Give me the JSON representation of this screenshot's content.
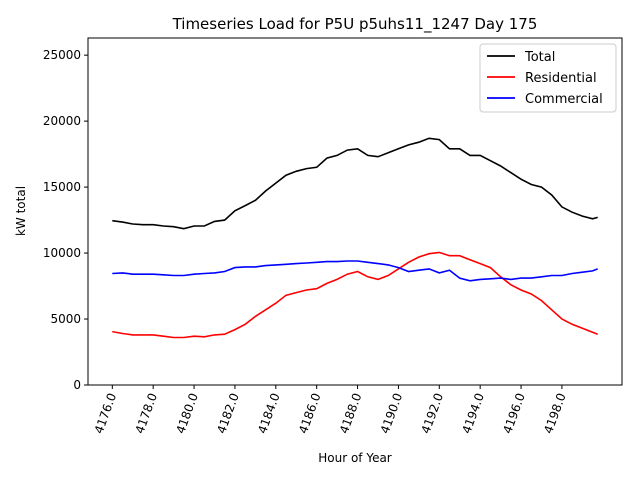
{
  "chart_data": {
    "type": "line",
    "title": "Timeseries Load for P5U p5uhs11_1247  Day 175",
    "xlabel": "Hour of Year",
    "ylabel": "kW total",
    "xlim": [
      4174.81,
      4200.94
    ],
    "ylim": [
      0,
      26300
    ],
    "xticks": [
      4176,
      4178,
      4180,
      4182,
      4184,
      4186,
      4188,
      4190,
      4192,
      4194,
      4196,
      4198
    ],
    "xtick_labels": [
      "4176.0",
      "4178.0",
      "4180.0",
      "4182.0",
      "4184.0",
      "4186.0",
      "4188.0",
      "4190.0",
      "4192.0",
      "4194.0",
      "4196.0",
      "4198.0"
    ],
    "yticks": [
      0,
      5000,
      10000,
      15000,
      20000,
      25000
    ],
    "ytick_labels": [
      "0",
      "5000",
      "10000",
      "15000",
      "20000",
      "25000"
    ],
    "grid": false,
    "legend_position": "top-right",
    "x": [
      4176,
      4176.5,
      4177,
      4177.5,
      4178,
      4178.5,
      4179,
      4179.5,
      4180,
      4180.5,
      4181,
      4181.5,
      4182,
      4182.5,
      4183,
      4183.5,
      4184,
      4184.5,
      4185,
      4185.5,
      4186,
      4186.5,
      4187,
      4187.5,
      4188,
      4188.5,
      4189,
      4189.5,
      4190,
      4190.5,
      4191,
      4191.5,
      4192,
      4192.5,
      4193,
      4193.5,
      4194,
      4194.5,
      4195,
      4195.5,
      4196,
      4196.5,
      4197,
      4197.5,
      4198,
      4198.5,
      4199,
      4199.5,
      4199.75
    ],
    "series": [
      {
        "name": "Total",
        "color": "#000000",
        "values": [
          12450,
          12350,
          12200,
          12150,
          12150,
          12050,
          12000,
          11850,
          12050,
          12050,
          12400,
          12500,
          13200,
          13600,
          14000,
          14700,
          15300,
          15900,
          16200,
          16400,
          16500,
          17200,
          17400,
          17800,
          17900,
          17400,
          17300,
          17600,
          17900,
          18200,
          18400,
          18700,
          18600,
          17900,
          17900,
          17400,
          17400,
          17000,
          16600,
          16100,
          15600,
          15200,
          15000,
          14400,
          13500,
          13100,
          12800,
          12600,
          12700
        ]
      },
      {
        "name": "Residential",
        "color": "#ff0000",
        "values": [
          4050,
          3900,
          3800,
          3800,
          3800,
          3700,
          3600,
          3600,
          3700,
          3650,
          3800,
          3850,
          4200,
          4600,
          5200,
          5700,
          6200,
          6800,
          7000,
          7200,
          7300,
          7700,
          8000,
          8400,
          8600,
          8200,
          8000,
          8300,
          8800,
          9300,
          9700,
          9950,
          10050,
          9800,
          9800,
          9500,
          9200,
          8900,
          8200,
          7600,
          7200,
          6900,
          6400,
          5700,
          5000,
          4600,
          4300,
          4000,
          3850
        ]
      },
      {
        "name": "Commercial",
        "color": "#0000ff",
        "values": [
          8450,
          8500,
          8400,
          8400,
          8400,
          8350,
          8300,
          8300,
          8400,
          8450,
          8500,
          8600,
          8900,
          8950,
          8950,
          9050,
          9100,
          9150,
          9200,
          9250,
          9300,
          9350,
          9350,
          9400,
          9400,
          9300,
          9200,
          9100,
          8900,
          8600,
          8700,
          8800,
          8500,
          8700,
          8100,
          7900,
          8000,
          8050,
          8100,
          8000,
          8100,
          8100,
          8200,
          8300,
          8300,
          8450,
          8550,
          8650,
          8800
        ]
      }
    ]
  }
}
